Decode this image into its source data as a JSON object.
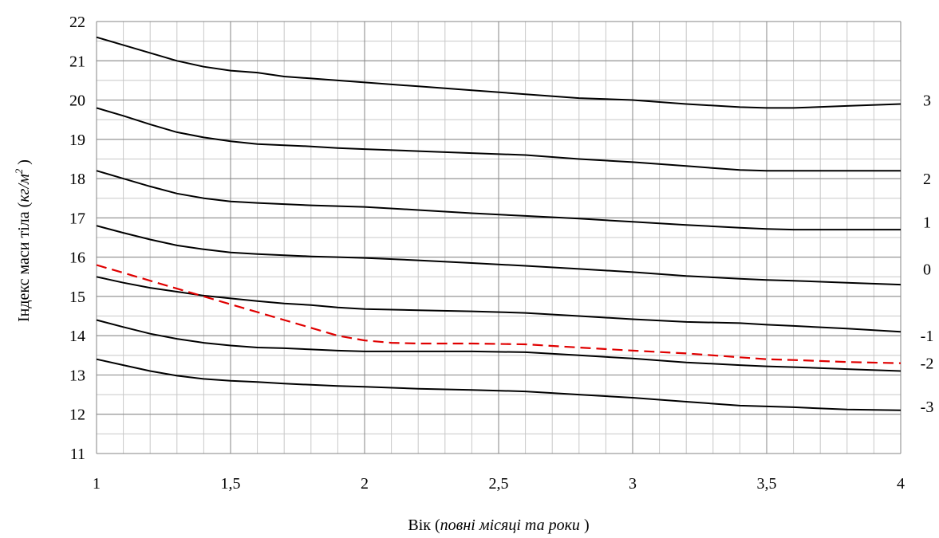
{
  "chart_data": {
    "type": "line",
    "xlabel_plain": "Вік (",
    "xlabel_italic": "повні місяці та роки",
    "xlabel_end": " )",
    "ylabel_plain": "Індекс маси тіла (",
    "ylabel_italic": "кг/м",
    "ylabel_sup": "2",
    "ylabel_end": " )",
    "xlim": [
      1,
      4
    ],
    "ylim": [
      11,
      22
    ],
    "x_ticks": [
      {
        "value": 1,
        "label": "1"
      },
      {
        "value": 1.5,
        "label": "1,5"
      },
      {
        "value": 2,
        "label": "2"
      },
      {
        "value": 2.5,
        "label": "2,5"
      },
      {
        "value": 3,
        "label": "3"
      },
      {
        "value": 3.5,
        "label": "3,5"
      },
      {
        "value": 4,
        "label": "4"
      }
    ],
    "y_ticks": [
      {
        "value": 11,
        "label": "11"
      },
      {
        "value": 12,
        "label": "12"
      },
      {
        "value": 13,
        "label": "13"
      },
      {
        "value": 14,
        "label": "14"
      },
      {
        "value": 15,
        "label": "15"
      },
      {
        "value": 16,
        "label": "16"
      },
      {
        "value": 17,
        "label": "17"
      },
      {
        "value": 18,
        "label": "18"
      },
      {
        "value": 19,
        "label": "19"
      },
      {
        "value": 20,
        "label": "20"
      },
      {
        "value": 21,
        "label": "21"
      },
      {
        "value": 22,
        "label": "22"
      }
    ],
    "grid": true,
    "minor_grid_x_step": 0.1,
    "minor_grid_y_step": 0.5,
    "line_color": "#000000",
    "highlight_color": "#e00000",
    "series": [
      {
        "label": "3",
        "label_y": 20.0,
        "style": "solid",
        "x": [
          1,
          1.1,
          1.2,
          1.3,
          1.4,
          1.5,
          1.6,
          1.7,
          1.8,
          1.9,
          2,
          2.2,
          2.4,
          2.6,
          2.8,
          3,
          3.2,
          3.4,
          3.5,
          3.6,
          3.8,
          4
        ],
        "y": [
          21.6,
          21.4,
          21.2,
          21.0,
          20.85,
          20.75,
          20.7,
          20.6,
          20.55,
          20.5,
          20.45,
          20.35,
          20.25,
          20.15,
          20.05,
          20.0,
          19.9,
          19.82,
          19.8,
          19.8,
          19.85,
          19.9
        ]
      },
      {
        "label": "2",
        "label_y": 18.0,
        "style": "solid",
        "x": [
          1,
          1.1,
          1.2,
          1.3,
          1.4,
          1.5,
          1.6,
          1.7,
          1.8,
          1.9,
          2,
          2.2,
          2.4,
          2.6,
          2.8,
          3,
          3.2,
          3.4,
          3.5,
          3.6,
          3.8,
          4
        ],
        "y": [
          19.8,
          19.6,
          19.38,
          19.18,
          19.05,
          18.95,
          18.88,
          18.85,
          18.82,
          18.78,
          18.75,
          18.7,
          18.65,
          18.6,
          18.5,
          18.42,
          18.32,
          18.22,
          18.2,
          18.2,
          18.2,
          18.2
        ]
      },
      {
        "label": "1",
        "label_y": 16.9,
        "style": "solid",
        "x": [
          1,
          1.1,
          1.2,
          1.3,
          1.4,
          1.5,
          1.6,
          1.7,
          1.8,
          1.9,
          2,
          2.2,
          2.4,
          2.6,
          2.8,
          3,
          3.2,
          3.4,
          3.5,
          3.6,
          3.8,
          4
        ],
        "y": [
          18.2,
          18.0,
          17.8,
          17.62,
          17.5,
          17.42,
          17.38,
          17.35,
          17.32,
          17.3,
          17.28,
          17.2,
          17.12,
          17.05,
          16.98,
          16.9,
          16.82,
          16.75,
          16.72,
          16.7,
          16.7,
          16.7
        ]
      },
      {
        "label": "0",
        "label_y": 15.7,
        "style": "solid",
        "x": [
          1,
          1.1,
          1.2,
          1.3,
          1.4,
          1.5,
          1.6,
          1.7,
          1.8,
          1.9,
          2,
          2.2,
          2.4,
          2.6,
          2.8,
          3,
          3.2,
          3.4,
          3.5,
          3.6,
          3.8,
          4
        ],
        "y": [
          16.8,
          16.62,
          16.45,
          16.3,
          16.2,
          16.12,
          16.08,
          16.05,
          16.02,
          16.0,
          15.98,
          15.92,
          15.85,
          15.78,
          15.7,
          15.62,
          15.52,
          15.45,
          15.42,
          15.4,
          15.35,
          15.3
        ]
      },
      {
        "label": "-1",
        "label_y": 14.0,
        "style": "solid",
        "x": [
          1,
          1.1,
          1.2,
          1.3,
          1.4,
          1.5,
          1.6,
          1.7,
          1.8,
          1.9,
          2,
          2.2,
          2.4,
          2.6,
          2.8,
          3,
          3.2,
          3.4,
          3.5,
          3.6,
          3.8,
          4
        ],
        "y": [
          15.5,
          15.35,
          15.22,
          15.12,
          15.02,
          14.95,
          14.88,
          14.82,
          14.78,
          14.72,
          14.68,
          14.65,
          14.62,
          14.58,
          14.5,
          14.42,
          14.35,
          14.32,
          14.28,
          14.25,
          14.18,
          14.1
        ]
      },
      {
        "label": "-2",
        "label_y": 13.3,
        "style": "solid",
        "x": [
          1,
          1.1,
          1.2,
          1.3,
          1.4,
          1.5,
          1.6,
          1.7,
          1.8,
          1.9,
          2,
          2.2,
          2.4,
          2.6,
          2.8,
          3,
          3.2,
          3.4,
          3.5,
          3.6,
          3.8,
          4
        ],
        "y": [
          14.4,
          14.22,
          14.05,
          13.92,
          13.82,
          13.75,
          13.7,
          13.68,
          13.65,
          13.62,
          13.6,
          13.6,
          13.6,
          13.58,
          13.5,
          13.42,
          13.32,
          13.25,
          13.22,
          13.2,
          13.15,
          13.1
        ]
      },
      {
        "label": "-3",
        "label_y": 12.2,
        "style": "solid",
        "x": [
          1,
          1.1,
          1.2,
          1.3,
          1.4,
          1.5,
          1.6,
          1.7,
          1.8,
          1.9,
          2,
          2.2,
          2.4,
          2.6,
          2.8,
          3,
          3.2,
          3.4,
          3.5,
          3.6,
          3.8,
          4
        ],
        "y": [
          13.4,
          13.25,
          13.1,
          12.98,
          12.9,
          12.85,
          12.82,
          12.78,
          12.75,
          12.72,
          12.7,
          12.65,
          12.62,
          12.58,
          12.5,
          12.42,
          12.32,
          12.22,
          12.2,
          12.18,
          12.12,
          12.1
        ]
      },
      {
        "label": "",
        "style": "dashed",
        "x": [
          1,
          1.1,
          1.2,
          1.3,
          1.4,
          1.5,
          1.6,
          1.7,
          1.8,
          1.9,
          2,
          2.1,
          2.2,
          2.4,
          2.6,
          2.8,
          3,
          3.2,
          3.4,
          3.5,
          3.6,
          3.8,
          4
        ],
        "y": [
          15.8,
          15.6,
          15.4,
          15.2,
          15.0,
          14.8,
          14.6,
          14.4,
          14.2,
          14.0,
          13.88,
          13.82,
          13.8,
          13.8,
          13.78,
          13.7,
          13.62,
          13.55,
          13.45,
          13.4,
          13.38,
          13.33,
          13.3
        ]
      }
    ]
  }
}
